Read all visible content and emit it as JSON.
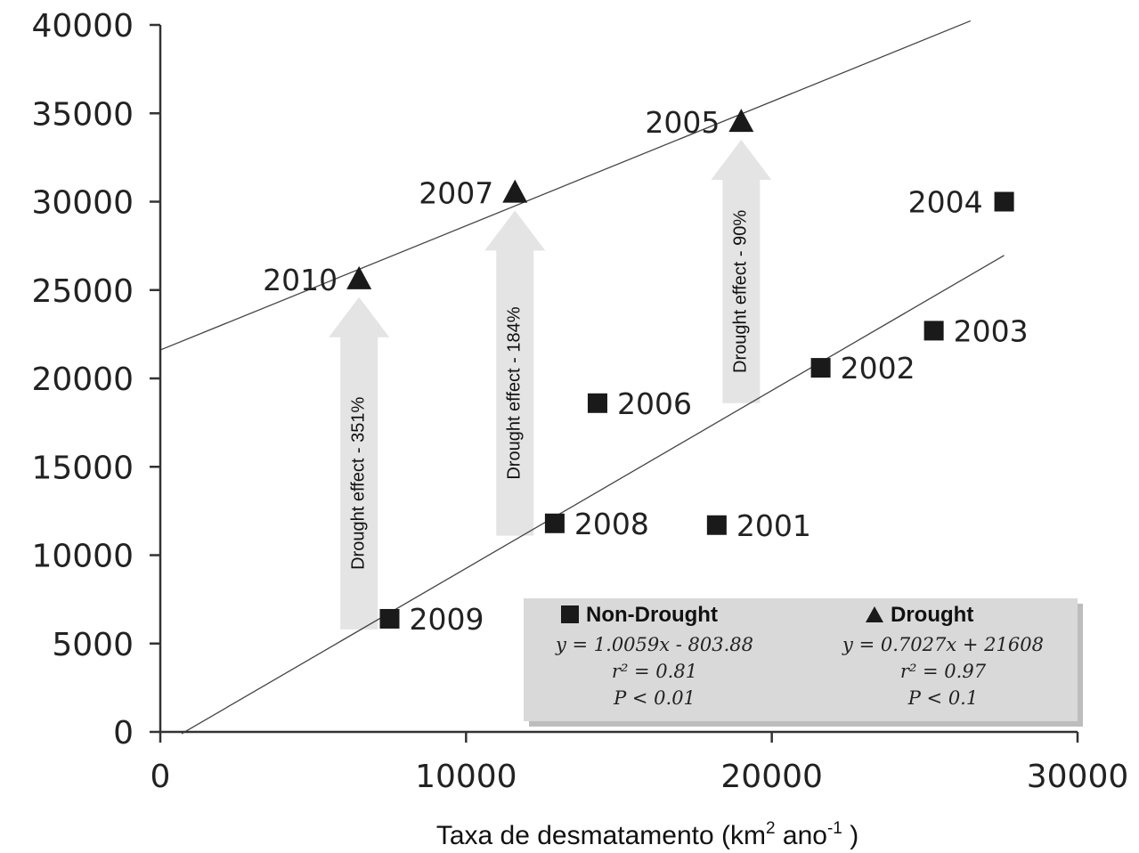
{
  "chart_data": {
    "type": "scatter",
    "xlabel": "Taxa de desmatamento (km",
    "xlabel_sup1": "2",
    "xlabel_mid": " ano",
    "xlabel_sup2": "-1",
    "xlabel_end": " )",
    "xlim": [
      0,
      30000
    ],
    "ylim": [
      0,
      40000
    ],
    "x_ticks": [
      "0",
      "10000",
      "20000",
      "30000"
    ],
    "y_ticks": [
      "0",
      "5000",
      "10000",
      "15000",
      "20000",
      "25000",
      "30000",
      "35000",
      "40000"
    ],
    "x_tick_values": [
      0,
      10000,
      20000,
      30000
    ],
    "y_tick_values": [
      0,
      5000,
      10000,
      15000,
      20000,
      25000,
      30000,
      35000,
      40000
    ],
    "series": [
      {
        "name": "Non-Drought",
        "marker": "square",
        "points": [
          {
            "label": "2001",
            "x": 18200,
            "y": 11700
          },
          {
            "label": "2002",
            "x": 21600,
            "y": 20600
          },
          {
            "label": "2003",
            "x": 25300,
            "y": 22700
          },
          {
            "label": "2004",
            "x": 27600,
            "y": 30000
          },
          {
            "label": "2006",
            "x": 14300,
            "y": 18600
          },
          {
            "label": "2008",
            "x": 12900,
            "y": 11800
          },
          {
            "label": "2009",
            "x": 7500,
            "y": 6400
          }
        ],
        "fit": {
          "slope": 1.0059,
          "intercept": -803.88,
          "x_range": [
            700,
            27600
          ]
        },
        "equation": "y = 1.0059x - 803.88",
        "r2": "r² = 0.81",
        "p": "P < 0.01"
      },
      {
        "name": "Drought",
        "marker": "triangle",
        "points": [
          {
            "label": "2005",
            "x": 19000,
            "y": 34500
          },
          {
            "label": "2007",
            "x": 11600,
            "y": 30500
          },
          {
            "label": "2010",
            "x": 6500,
            "y": 25600
          }
        ],
        "fit": {
          "slope": 0.7027,
          "intercept": 21608,
          "x_range": [
            0,
            26500
          ]
        },
        "equation": "y = 0.7027x + 21608",
        "r2": "r² = 0.97",
        "p": "P < 0.1"
      }
    ],
    "annotations": [
      {
        "text": "Drought effect - 351%",
        "x": 6500,
        "y_from": 5800,
        "y_to": 24600
      },
      {
        "text": "Drought effect - 184%",
        "x": 11600,
        "y_from": 11100,
        "y_to": 29500
      },
      {
        "text": "Drought effect - 90%",
        "x": 19000,
        "y_from": 18600,
        "y_to": 33500
      }
    ],
    "legend_position": "bottom-right",
    "colors": {
      "marker": "#1a1a1a",
      "arrow": "#e4e4e4",
      "legend_bg": "#d9d9d9",
      "line": "#444444"
    }
  }
}
